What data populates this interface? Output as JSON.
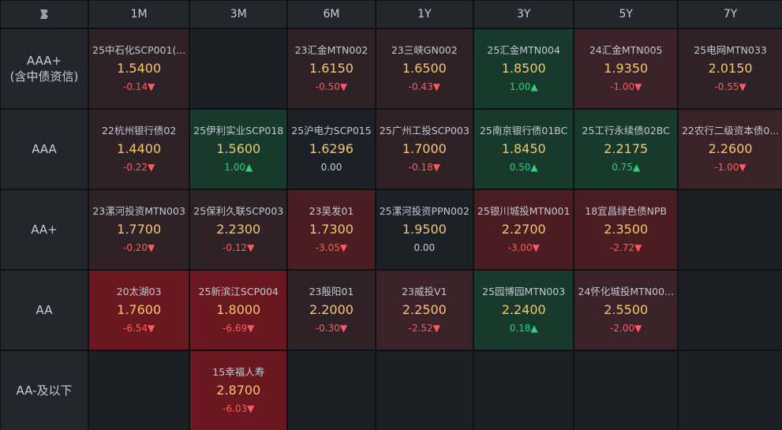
{
  "header": {
    "columns": [
      "1M",
      "3M",
      "6M",
      "1Y",
      "3Y",
      "5Y",
      "7Y"
    ]
  },
  "rows": [
    {
      "label_line1": "AAA+",
      "label_line2": "(含中债资信)",
      "cells": [
        {
          "name": "25中石化SCP001(...",
          "price": "1.5400",
          "change": "-0.14▼",
          "dir": "dn",
          "tone": "rd1"
        },
        null,
        {
          "name": "23汇金MTN002",
          "price": "1.6150",
          "change": "-0.50▼",
          "dir": "dn",
          "tone": "rd1"
        },
        {
          "name": "23三峡GN002",
          "price": "1.6500",
          "change": "-0.43▼",
          "dir": "dn",
          "tone": "rd1"
        },
        {
          "name": "25汇金MTN004",
          "price": "1.8500",
          "change": "1.00▲",
          "dir": "up",
          "tone": "gr1"
        },
        {
          "name": "24汇金MTN005",
          "price": "1.9350",
          "change": "-1.00▼",
          "dir": "dn",
          "tone": "rd2"
        },
        {
          "name": "25电网MTN033",
          "price": "2.0150",
          "change": "-0.55▼",
          "dir": "dn",
          "tone": "rd1"
        }
      ]
    },
    {
      "label_line1": "AAA",
      "label_line2": "",
      "cells": [
        {
          "name": "22杭州银行债02",
          "price": "1.4400",
          "change": "-0.22▼",
          "dir": "dn",
          "tone": "rd1"
        },
        {
          "name": "25伊利实业SCP018",
          "price": "1.5600",
          "change": "1.00▲",
          "dir": "up",
          "tone": "gr1"
        },
        {
          "name": "25沪电力SCP015",
          "price": "1.6296",
          "change": "0.00",
          "dir": "fl",
          "tone": "flat"
        },
        {
          "name": "25广州工投SCP003",
          "price": "1.7000",
          "change": "-0.18▼",
          "dir": "dn",
          "tone": "rd1"
        },
        {
          "name": "25南京银行债01BC",
          "price": "1.8450",
          "change": "0.50▲",
          "dir": "up",
          "tone": "gr1"
        },
        {
          "name": "25工行永续债02BC",
          "price": "2.2175",
          "change": "0.75▲",
          "dir": "up",
          "tone": "gr1"
        },
        {
          "name": "22农行二级资本债0...",
          "price": "2.2600",
          "change": "-1.00▼",
          "dir": "dn",
          "tone": "rd2"
        }
      ]
    },
    {
      "label_line1": "AA+",
      "label_line2": "",
      "cells": [
        {
          "name": "23漯河投资MTN003",
          "price": "1.7700",
          "change": "-0.20▼",
          "dir": "dn",
          "tone": "rd1"
        },
        {
          "name": "25保利久联SCP003",
          "price": "2.2300",
          "change": "-0.12▼",
          "dir": "dn",
          "tone": "rd1"
        },
        {
          "name": "23吴发01",
          "price": "1.7300",
          "change": "-3.05▼",
          "dir": "dn",
          "tone": "rd3"
        },
        {
          "name": "25漯河投资PPN002",
          "price": "1.9500",
          "change": "0.00",
          "dir": "fl",
          "tone": "flat"
        },
        {
          "name": "25银川城投MTN001",
          "price": "2.2700",
          "change": "-3.00▼",
          "dir": "dn",
          "tone": "rd3"
        },
        {
          "name": "18宜昌绿色债NPB",
          "price": "2.3500",
          "change": "-2.72▼",
          "dir": "dn",
          "tone": "rd3"
        },
        null
      ]
    },
    {
      "label_line1": "AA",
      "label_line2": "",
      "cells": [
        {
          "name": "20太湖03",
          "price": "1.7600",
          "change": "-6.54▼",
          "dir": "dn",
          "tone": "rd4"
        },
        {
          "name": "25新滨江SCP004",
          "price": "1.8000",
          "change": "-6.69▼",
          "dir": "dn",
          "tone": "rd4"
        },
        {
          "name": "23殷阳01",
          "price": "2.2000",
          "change": "-0.30▼",
          "dir": "dn",
          "tone": "rd1"
        },
        {
          "name": "23威投V1",
          "price": "2.2500",
          "change": "-2.52▼",
          "dir": "dn",
          "tone": "rd2"
        },
        {
          "name": "25园博园MTN003",
          "price": "2.2400",
          "change": "0.18▲",
          "dir": "up",
          "tone": "gr1"
        },
        {
          "name": "24怀化城投MTN00...",
          "price": "2.5500",
          "change": "-2.00▼",
          "dir": "dn",
          "tone": "rd2"
        },
        null
      ]
    },
    {
      "label_line1": "AA-及以下",
      "label_line2": "",
      "cells": [
        null,
        {
          "name": "15幸福人寿",
          "price": "2.8700",
          "change": "-6.03▼",
          "dir": "dn",
          "tone": "rd4"
        },
        null,
        null,
        null,
        null,
        null
      ]
    }
  ],
  "colors": {
    "price": "#f4c76a",
    "down": "#ff5a5f",
    "up": "#2fd17d"
  }
}
